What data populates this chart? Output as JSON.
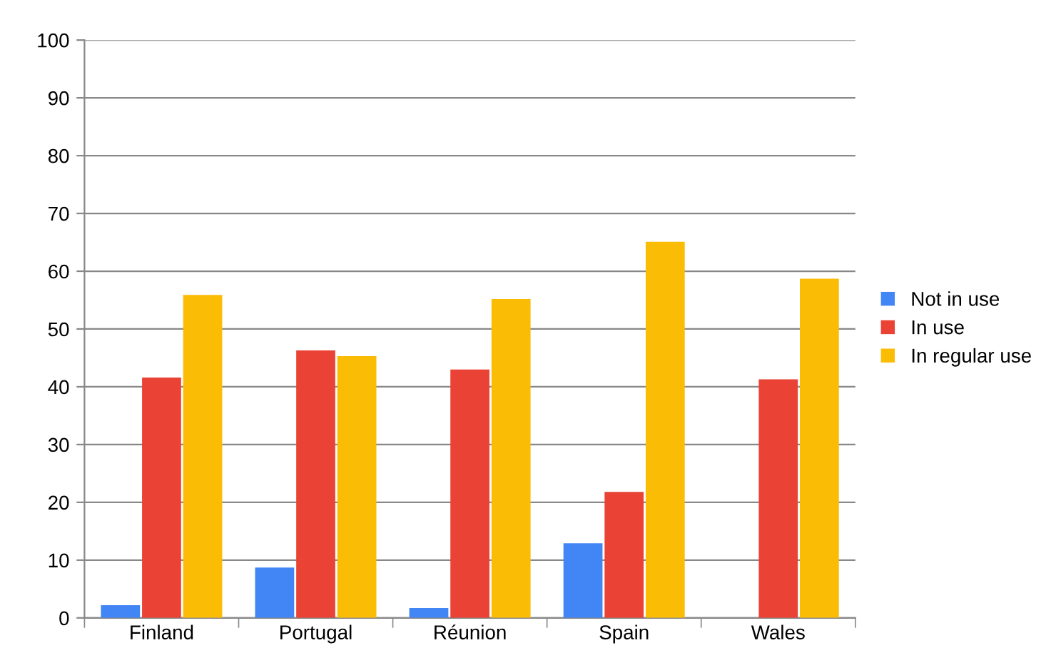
{
  "chart_data": {
    "type": "bar",
    "categories": [
      "Finland",
      "Portugal",
      "Réunion",
      "Spain",
      "Wales"
    ],
    "series": [
      {
        "name": "Not in use",
        "color": "#4285f4",
        "values": [
          2.2,
          8.7,
          1.7,
          12.9,
          0
        ]
      },
      {
        "name": "In use",
        "color": "#ea4335",
        "values": [
          41.6,
          46.3,
          43,
          21.8,
          41.3
        ]
      },
      {
        "name": "In regular use",
        "color": "#fbbc05",
        "values": [
          55.9,
          45.3,
          55.2,
          65.1,
          58.7
        ]
      }
    ],
    "ylim": [
      0,
      100
    ],
    "yticks": [
      0,
      10,
      20,
      30,
      40,
      50,
      60,
      70,
      80,
      90,
      100
    ],
    "grid": "y",
    "legend": "right"
  }
}
